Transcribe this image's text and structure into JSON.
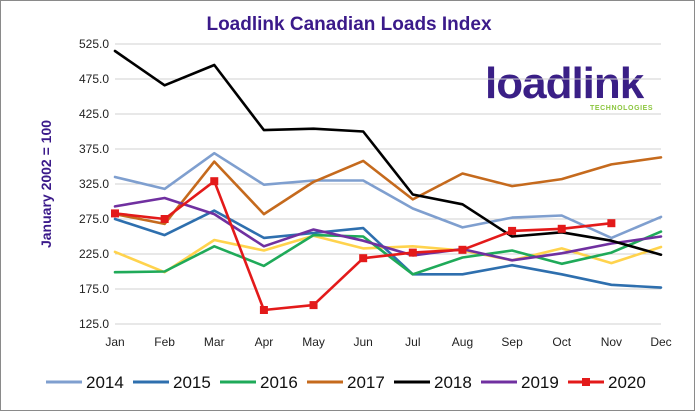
{
  "chart_data": {
    "type": "line",
    "title": "Loadlink Canadian Loads Index",
    "ylabel": "January 2002 = 100",
    "xlabel": "",
    "ylim": [
      125,
      525
    ],
    "yticks": [
      "525.0",
      "475.0",
      "425.0",
      "375.0",
      "325.0",
      "275.0",
      "225.0",
      "175.0",
      "125.0"
    ],
    "ytick_values": [
      525,
      475,
      425,
      375,
      325,
      275,
      225,
      175,
      125
    ],
    "categories": [
      "Jan",
      "Feb",
      "Mar",
      "Apr",
      "May",
      "Jun",
      "Jul",
      "Aug",
      "Sep",
      "Oct",
      "Nov",
      "Dec"
    ],
    "grid": "horizontal",
    "legend_position": "bottom",
    "series": [
      {
        "name": "2014",
        "color": "#7f9fcf",
        "marker": false,
        "values": [
          335,
          318,
          369,
          324,
          330,
          330,
          290,
          263,
          277,
          280,
          248,
          278
        ]
      },
      {
        "name": "2015",
        "color": "#2e6fae",
        "marker": false,
        "values": [
          275,
          252,
          287,
          248,
          255,
          262,
          196,
          196,
          209,
          196,
          181,
          177
        ]
      },
      {
        "name": "2016",
        "color": "#1faa59",
        "marker": false,
        "values": [
          199,
          200,
          236,
          208,
          252,
          250,
          196,
          220,
          230,
          211,
          227,
          257
        ]
      },
      {
        "name": "2017",
        "color": "#c56a1d",
        "marker": false,
        "values": [
          282,
          268,
          357,
          282,
          328,
          358,
          303,
          340,
          322,
          332,
          353,
          363
        ]
      },
      {
        "name": "2018",
        "color": "#000000",
        "marker": false,
        "values": [
          515,
          466,
          495,
          402,
          404,
          400,
          310,
          296,
          250,
          256,
          244,
          224
        ]
      },
      {
        "name": "2019",
        "color": "#7030a0",
        "marker": false,
        "values": [
          293,
          305,
          282,
          236,
          260,
          244,
          223,
          232,
          216,
          226,
          240,
          250
        ]
      },
      {
        "name": "2020",
        "color": "#e31a1a",
        "marker": true,
        "values": [
          283,
          275,
          329,
          145,
          152,
          219,
          227,
          231,
          258,
          261,
          269,
          null
        ]
      },
      {
        "name": "",
        "color": "#ffd34d",
        "marker": false,
        "in_legend": false,
        "values": [
          228,
          199,
          245,
          230,
          251,
          233,
          236,
          230,
          216,
          233,
          212,
          235
        ]
      }
    ]
  },
  "logo": {
    "name": "loadlink",
    "tagline": "TECHNOLOGIES",
    "color": "#3a1f86",
    "accent": "#8cc63f"
  }
}
